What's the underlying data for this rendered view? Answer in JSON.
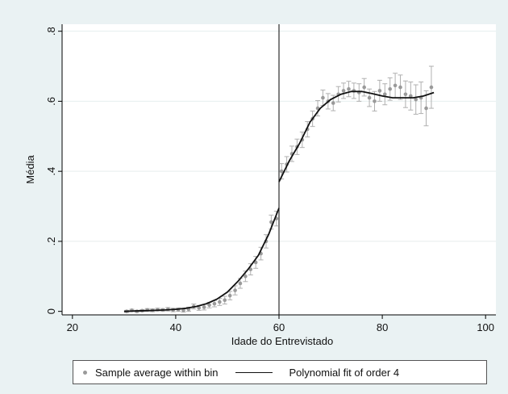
{
  "chart_data": {
    "type": "scatter",
    "xlabel": "Idade do Entrevistado",
    "ylabel": "Média",
    "xlim": [
      18,
      102
    ],
    "ylim": [
      -0.01,
      0.82
    ],
    "x_ticks": [
      20,
      40,
      60,
      80,
      100
    ],
    "x_tick_labels": [
      "20",
      "40",
      "60",
      "80",
      "100"
    ],
    "y_ticks": [
      0,
      0.2,
      0.4,
      0.6,
      0.8
    ],
    "y_tick_labels": [
      "0",
      ".2",
      ".4",
      ".6",
      ".8"
    ],
    "grid": true,
    "cutoff_x": 60,
    "legend_position": "bottom",
    "series": [
      {
        "name": "Sample average within bin",
        "style": "points with error bars",
        "color": "#9a9a9a",
        "x": [
          30.5,
          31.5,
          32.5,
          33.5,
          34.5,
          35.5,
          36.5,
          37.5,
          38.5,
          39.5,
          40.5,
          41.5,
          42.5,
          43.5,
          44.5,
          45.5,
          46.5,
          47.5,
          48.5,
          49.5,
          50.5,
          51.5,
          52.5,
          53.5,
          54.5,
          55.5,
          56.5,
          57.5,
          58.5,
          59.5,
          60.5,
          61.5,
          62.5,
          63.5,
          64.5,
          65.5,
          66.5,
          67.5,
          68.5,
          69.5,
          70.5,
          71.5,
          72.5,
          73.5,
          74.5,
          75.5,
          76.5,
          77.5,
          78.5,
          79.5,
          80.5,
          81.5,
          82.5,
          83.5,
          84.5,
          85.5,
          86.5,
          87.5,
          88.5,
          89.5
        ],
        "y": [
          0.0,
          0.003,
          0.0,
          0.002,
          0.004,
          0.003,
          0.005,
          0.004,
          0.006,
          0.004,
          0.005,
          0.003,
          0.006,
          0.014,
          0.01,
          0.012,
          0.018,
          0.022,
          0.027,
          0.032,
          0.045,
          0.06,
          0.08,
          0.1,
          0.12,
          0.14,
          0.165,
          0.2,
          0.255,
          0.265,
          0.4,
          0.42,
          0.45,
          0.47,
          0.49,
          0.52,
          0.55,
          0.58,
          0.61,
          0.6,
          0.595,
          0.62,
          0.63,
          0.635,
          0.63,
          0.625,
          0.64,
          0.61,
          0.6,
          0.63,
          0.62,
          0.635,
          0.645,
          0.64,
          0.62,
          0.615,
          0.605,
          0.61,
          0.58,
          0.64
        ],
        "err": [
          0.003,
          0.003,
          0.003,
          0.003,
          0.004,
          0.004,
          0.004,
          0.004,
          0.005,
          0.005,
          0.005,
          0.005,
          0.006,
          0.007,
          0.007,
          0.008,
          0.008,
          0.009,
          0.01,
          0.011,
          0.012,
          0.013,
          0.014,
          0.015,
          0.016,
          0.017,
          0.018,
          0.019,
          0.02,
          0.021,
          0.022,
          0.022,
          0.022,
          0.022,
          0.022,
          0.022,
          0.022,
          0.022,
          0.022,
          0.022,
          0.022,
          0.022,
          0.022,
          0.022,
          0.022,
          0.025,
          0.025,
          0.025,
          0.028,
          0.03,
          0.03,
          0.032,
          0.035,
          0.035,
          0.038,
          0.04,
          0.042,
          0.045,
          0.05,
          0.06
        ]
      },
      {
        "name": "Polynomial fit of order 4",
        "style": "line",
        "color": "#111111",
        "segments": [
          {
            "x": [
              30,
              32,
              34,
              36,
              38,
              40,
              42,
              44,
              46,
              48,
              50,
              52,
              54,
              56,
              58,
              60
            ],
            "y": [
              0.0,
              0.001,
              0.002,
              0.003,
              0.004,
              0.006,
              0.009,
              0.014,
              0.022,
              0.035,
              0.055,
              0.085,
              0.12,
              0.16,
              0.22,
              0.295
            ]
          },
          {
            "x": [
              60,
              62,
              64,
              66,
              68,
              70,
              72,
              74,
              76,
              78,
              80,
              82,
              84,
              86,
              88,
              90
            ],
            "y": [
              0.37,
              0.43,
              0.48,
              0.54,
              0.58,
              0.605,
              0.62,
              0.628,
              0.628,
              0.622,
              0.615,
              0.61,
              0.61,
              0.61,
              0.615,
              0.625
            ]
          }
        ]
      }
    ]
  }
}
